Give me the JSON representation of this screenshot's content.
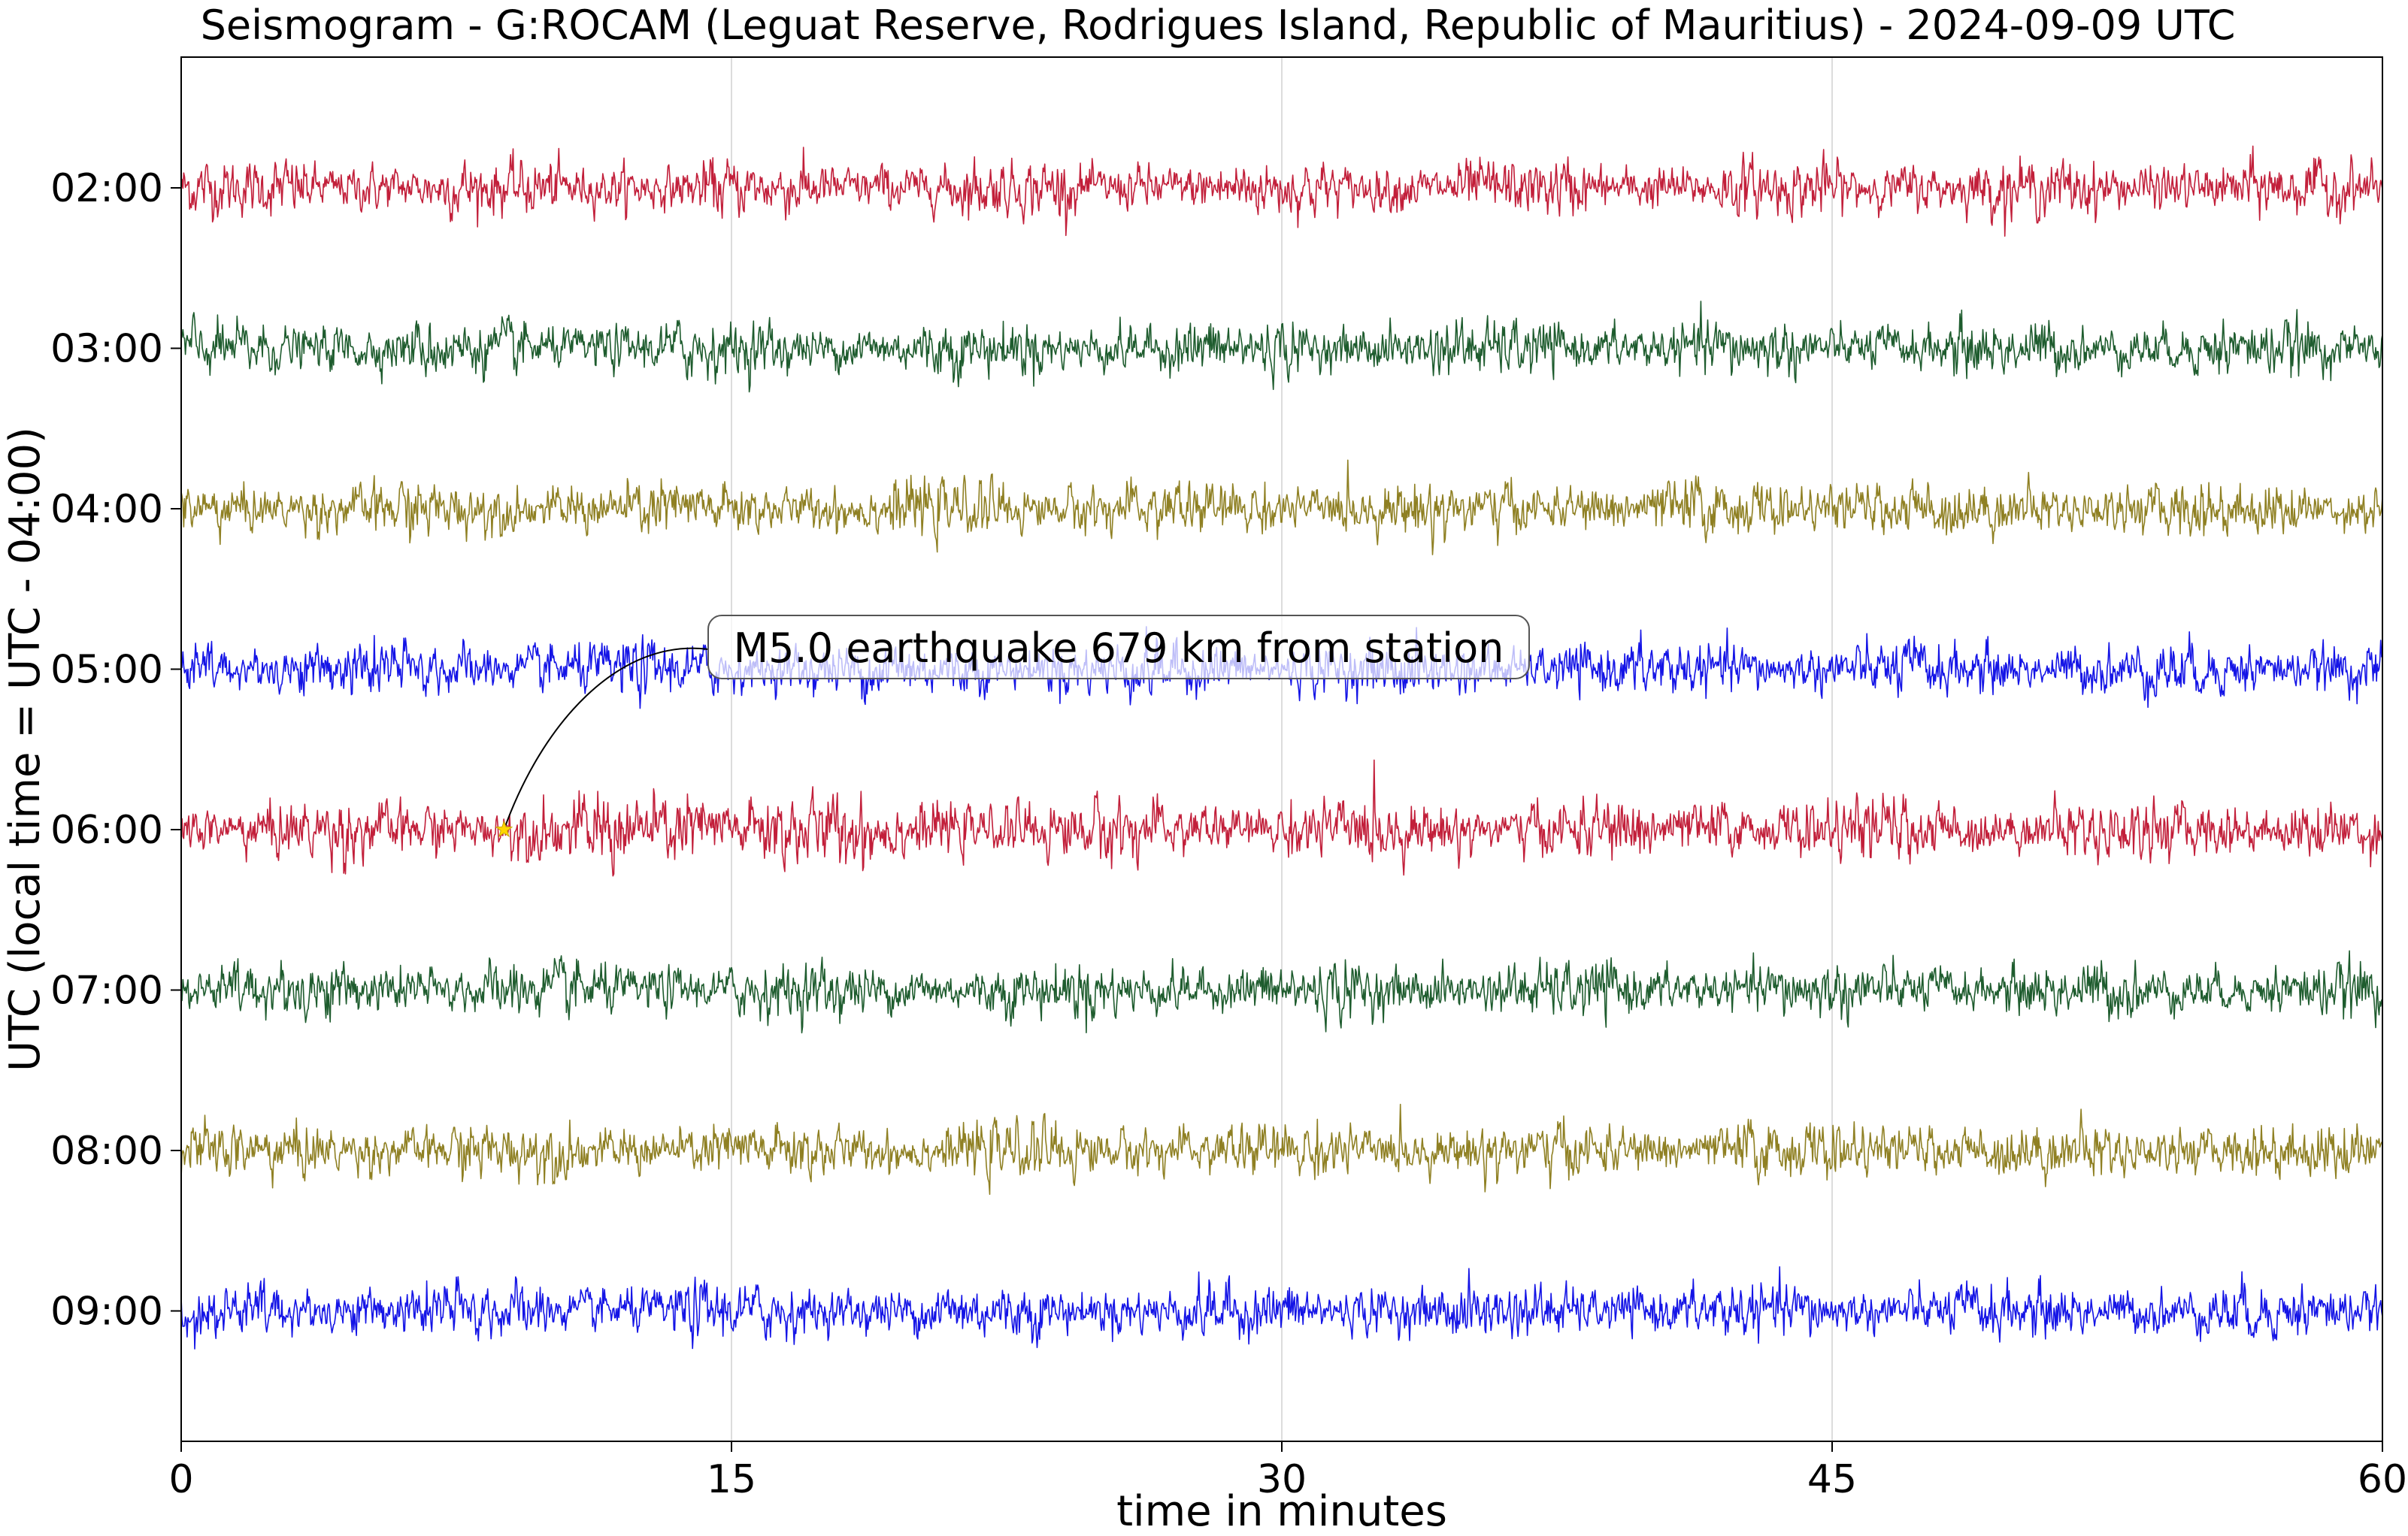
{
  "chart_data": {
    "type": "line",
    "title": "Seismogram - G:ROCAM (Leguat Reserve, Rodrigues Island, Republic of Mauritius) - 2024-09-09 UTC",
    "xlabel": "time in minutes",
    "ylabel": "UTC (local time = UTC - 04:00)",
    "xlim": [
      0,
      60
    ],
    "x_ticks": [
      "0",
      "15",
      "30",
      "45",
      "60"
    ],
    "x_tick_values": [
      0,
      15,
      30,
      45,
      60
    ],
    "grid": "vertical lines at x ticks",
    "series": [
      {
        "name": "02:00",
        "color": "#c21f3a",
        "amplitude": 0.33
      },
      {
        "name": "03:00",
        "color": "#1e5c2e",
        "amplitude": 0.33
      },
      {
        "name": "04:00",
        "color": "#8f8023",
        "amplitude": 0.33
      },
      {
        "name": "05:00",
        "color": "#1414e6",
        "amplitude": 0.33
      },
      {
        "name": "06:00",
        "color": "#c21f3a",
        "amplitude": 0.36
      },
      {
        "name": "07:00",
        "color": "#1e5c2e",
        "amplitude": 0.33
      },
      {
        "name": "08:00",
        "color": "#8f8023",
        "amplitude": 0.33
      },
      {
        "name": "09:00",
        "color": "#1414e6",
        "amplitude": 0.33
      }
    ],
    "annotation": {
      "text": "M5.0 earthquake 679 km from station",
      "marker_x": 8.8,
      "marker_row": "06:00",
      "marker_color": "#ffd700"
    }
  }
}
